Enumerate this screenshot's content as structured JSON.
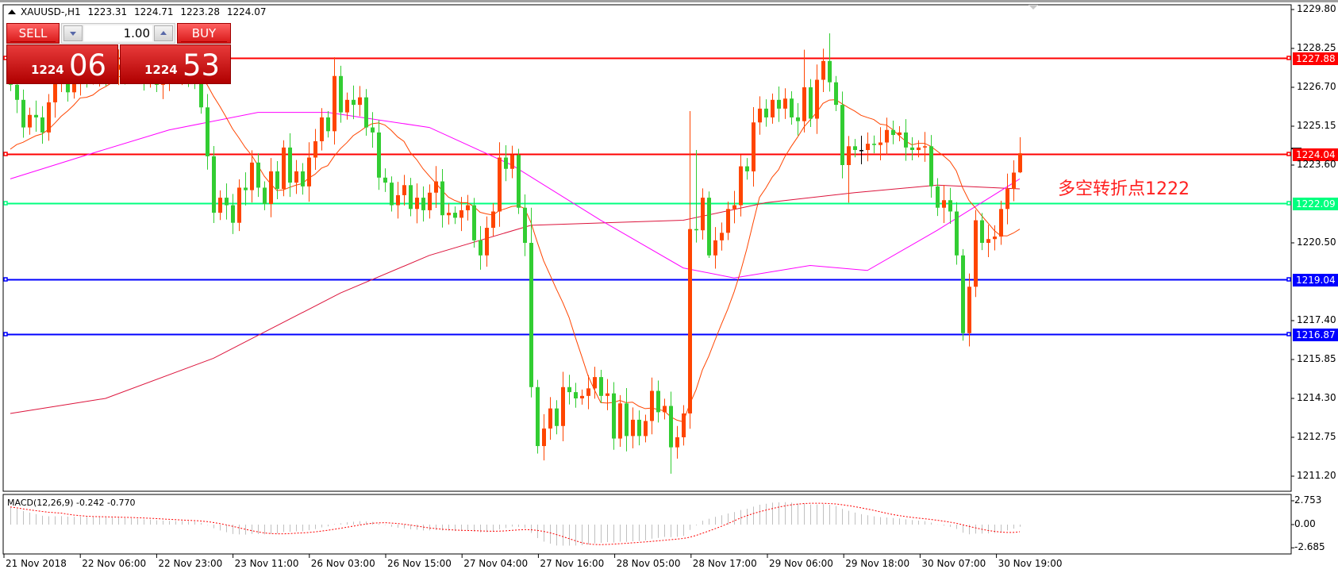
{
  "header": {
    "symbol": "XAUUSD-,H1",
    "open": "1223.31",
    "high": "1224.71",
    "low": "1223.28",
    "close": "1224.07"
  },
  "trade_panel": {
    "sell_label": "SELL",
    "buy_label": "BUY",
    "lot": "1.00",
    "sell_price_small": "1224",
    "sell_price_big": "06",
    "buy_price_small": "1224",
    "buy_price_big": "53"
  },
  "annotation": {
    "text": "多空转折点1222",
    "color": "#ff2020"
  },
  "price_axis": {
    "ticks": [
      "1229.80",
      "1228.25",
      "1226.70",
      "1225.15",
      "1223.60",
      "1220.50",
      "1217.40",
      "1215.85",
      "1214.30",
      "1212.75",
      "1211.20"
    ]
  },
  "levels": [
    {
      "label": "1227.88",
      "value": 1227.88,
      "color": "#ff0000"
    },
    {
      "label": "1224.04",
      "value": 1224.04,
      "color": "#ff0000"
    },
    {
      "label": "1222.09",
      "value": 1222.09,
      "color": "#00ff7f"
    },
    {
      "label": "1219.04",
      "value": 1219.04,
      "color": "#0000ff"
    },
    {
      "label": "1216.87",
      "value": 1216.87,
      "color": "#0000ff"
    }
  ],
  "macd": {
    "label": "MACD(12,26,9) -0.242 -0.770",
    "ticks": [
      "2.753",
      "0.00",
      "-2.685"
    ]
  },
  "time_axis": {
    "labels": [
      "21 Nov 2018",
      "22 Nov 06:00",
      "22 Nov 23:00",
      "23 Nov 11:00",
      "26 Nov 03:00",
      "26 Nov 15:00",
      "27 Nov 04:00",
      "27 Nov 16:00",
      "28 Nov 05:00",
      "28 Nov 17:00",
      "29 Nov 06:00",
      "29 Nov 18:00",
      "30 Nov 07:00",
      "30 Nov 19:00"
    ]
  },
  "chart_data": {
    "type": "candlestick",
    "colors": {
      "bull": "#ff4500",
      "bear": "#32cd32",
      "doji": "#000000",
      "ma_fast": "#ff4500",
      "ma_mid": "#ff00ff",
      "ma_slow": "#dc143c",
      "macd_hist": "#c0c0c0",
      "macd_signal": "#ff0000"
    },
    "ylim": [
      1211.2,
      1229.8
    ],
    "close": [
      1226.8,
      1226.2,
      1225.1,
      1225.6,
      1225.5,
      1224.9,
      1226.1,
      1227.0,
      1227.3,
      1226.5,
      1226.9,
      1227.4,
      1227.1,
      1227.3,
      1227.5,
      1227.2,
      1227.4,
      1227.6,
      1227.3,
      1227.5,
      1227.2,
      1227.1,
      1227.3,
      1226.8,
      1227.0,
      1227.2,
      1227.4,
      1227.6,
      1227.2,
      1227.0,
      1225.9,
      1223.95,
      1221.7,
      1222.3,
      1222.0,
      1221.3,
      1222.7,
      1222.6,
      1223.7,
      1222.7,
      1222.05,
      1223.35,
      1222.65,
      1224.3,
      1222.9,
      1223.35,
      1222.75,
      1223.9,
      1224.55,
      1225.5,
      1224.95,
      1227.15,
      1225.7,
      1226.2,
      1226.0,
      1226.3,
      1225.1,
      1224.9,
      1223.1,
      1222.9,
      1222.0,
      1222.4,
      1222.8,
      1221.85,
      1222.3,
      1221.8,
      1222.5,
      1222.95,
      1221.6,
      1221.7,
      1221.5,
      1221.8,
      1222.0,
      1220.6,
      1220.0,
      1221.1,
      1221.75,
      1223.9,
      1223.45,
      1224.0,
      1221.9,
      1220.5,
      1214.75,
      1212.4,
      1213.1,
      1213.9,
      1213.2,
      1214.75,
      1214.55,
      1214.3,
      1214.4,
      1214.7,
      1215.15,
      1214.4,
      1214.5,
      1212.7,
      1214.1,
      1212.8,
      1213.45,
      1212.8,
      1213.4,
      1214.6,
      1213.75,
      1214.0,
      1212.35,
      1212.75,
      1213.7,
      1221.05,
      1221.0,
      1222.3,
      1220.0,
      1220.6,
      1220.9,
      1221.85,
      1222.0,
      1223.55,
      1223.35,
      1225.3,
      1225.85,
      1225.5,
      1226.2,
      1225.85,
      1226.25,
      1225.5,
      1225.35,
      1226.7,
      1225.45,
      1227.0,
      1227.75,
      1226.9,
      1226.0,
      1223.6,
      1224.35,
      1224.2,
      1224.2,
      1224.45,
      1224.4,
      1224.5,
      1225.0,
      1224.8,
      1224.9,
      1224.3,
      1224.2,
      1224.3,
      1224.35,
      1222.75,
      1221.9,
      1222.2,
      1221.75,
      1220.0,
      1216.9,
      1218.75,
      1221.4,
      1220.5,
      1220.65,
      1220.75,
      1221.85,
      1222.65,
      1223.3,
      1224.07
    ],
    "high_overrides": {
      "51": 1227.9,
      "107": 1225.75,
      "108": 1224.2,
      "125": 1228.2,
      "129": 1228.85,
      "82": 1221.9,
      "159": 1224.71
    },
    "low_overrides": {
      "104": 1211.3,
      "83": 1212.1,
      "150": 1216.6,
      "132": 1222.1,
      "110": 1219.9,
      "159": 1223.28
    },
    "last_bar": {
      "open": 1223.31,
      "high": 1224.71,
      "low": 1223.28,
      "close": 1224.07
    },
    "ma_mid_points": [
      [
        0,
        1223.05
      ],
      [
        12,
        1224.0
      ],
      [
        25,
        1225.0
      ],
      [
        39,
        1225.7
      ],
      [
        50,
        1225.7
      ],
      [
        66,
        1225.1
      ],
      [
        79,
        1223.6
      ],
      [
        93,
        1221.4
      ],
      [
        106,
        1219.5
      ],
      [
        114,
        1219.1
      ],
      [
        126,
        1219.6
      ],
      [
        135,
        1219.4
      ],
      [
        146,
        1221.0
      ],
      [
        159,
        1223.05
      ]
    ],
    "ma_slow_points": [
      [
        0,
        1213.7
      ],
      [
        15,
        1214.3
      ],
      [
        32,
        1215.9
      ],
      [
        52,
        1218.5
      ],
      [
        66,
        1220.0
      ],
      [
        82,
        1221.2
      ],
      [
        106,
        1221.4
      ],
      [
        119,
        1222.1
      ],
      [
        133,
        1222.5
      ],
      [
        146,
        1222.8
      ],
      [
        159,
        1222.65
      ]
    ]
  }
}
